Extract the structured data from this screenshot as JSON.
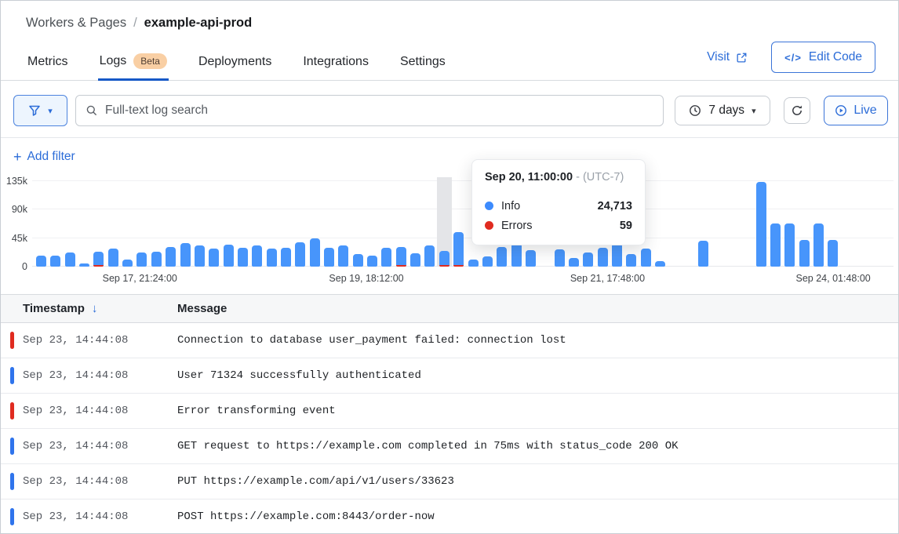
{
  "colors": {
    "accent": "#2b6cd8",
    "tab_underline": "#1659c7",
    "bar_blue": "#4795fb",
    "red": "#e02b20",
    "dot_blue": "#3d8bfd",
    "indicator_blue": "#2f74ec",
    "hover_band": "#e4e5e8",
    "beta_bg": "#f9cfa4",
    "beta_text": "#4f3e33"
  },
  "icons": {
    "code": "</>",
    "plus": "+",
    "caret": "▾",
    "sort_desc": "↓"
  },
  "header": {
    "breadcrumb_root": "Workers & Pages",
    "breadcrumb_sep": "/",
    "breadcrumb_current": "example-api-prod"
  },
  "tabs": {
    "items": [
      {
        "label": "Metrics",
        "active": false
      },
      {
        "label": "Logs",
        "badge": "Beta",
        "active": true
      },
      {
        "label": "Deployments",
        "active": false
      },
      {
        "label": "Integrations",
        "active": false
      },
      {
        "label": "Settings",
        "active": false
      }
    ],
    "visit_label": "Visit",
    "edit_code_label": "Edit Code"
  },
  "filter_bar": {
    "search_placeholder": "Full-text log search",
    "range_label": "7 days",
    "live_label": "Live",
    "add_filter_label": "Add filter"
  },
  "tooltip": {
    "title": "Sep 20, 11:00:00",
    "timezone": "- (UTC-7)",
    "rows": [
      {
        "label": "Info",
        "value": "24,713",
        "color": "#3d8bfd"
      },
      {
        "label": "Errors",
        "value": "59",
        "color": "#e02b20"
      }
    ]
  },
  "chart_data": {
    "type": "bar",
    "stacked": true,
    "series_names": [
      "Info",
      "Errors"
    ],
    "ylim": [
      0,
      135000
    ],
    "yticks": [
      {
        "label": "135k",
        "value": 135000
      },
      {
        "label": "90k",
        "value": 90000
      },
      {
        "label": "45k",
        "value": 45000
      },
      {
        "label": "0",
        "value": 0
      }
    ],
    "xticks": [
      {
        "label": "Sep 17, 21:24:00",
        "pos": 0.125
      },
      {
        "label": "Sep 19, 18:12:00",
        "pos": 0.388
      },
      {
        "label": "Sep 21, 17:48:00",
        "pos": 0.668
      },
      {
        "label": "Sep 24, 01:48:00",
        "pos": 0.93
      }
    ],
    "hover_index": 28,
    "hover": {
      "time": "Sep 20, 11:00:00",
      "info": 24713,
      "errors": 59
    },
    "bars": [
      {
        "info": 17000,
        "errors": 0
      },
      {
        "info": 17000,
        "errors": 0
      },
      {
        "info": 22000,
        "errors": 0
      },
      {
        "info": 5000,
        "errors": 0
      },
      {
        "info": 22000,
        "errors": 1500
      },
      {
        "info": 28000,
        "errors": 0
      },
      {
        "info": 11000,
        "errors": 0
      },
      {
        "info": 22000,
        "errors": 0
      },
      {
        "info": 24000,
        "errors": 0
      },
      {
        "info": 31000,
        "errors": 0
      },
      {
        "info": 37000,
        "errors": 0
      },
      {
        "info": 34000,
        "errors": 0
      },
      {
        "info": 28000,
        "errors": 0
      },
      {
        "info": 35000,
        "errors": 0
      },
      {
        "info": 30000,
        "errors": 0
      },
      {
        "info": 34000,
        "errors": 0
      },
      {
        "info": 28000,
        "errors": 0
      },
      {
        "info": 30000,
        "errors": 0
      },
      {
        "info": 38000,
        "errors": 0
      },
      {
        "info": 45000,
        "errors": 0
      },
      {
        "info": 30000,
        "errors": 0
      },
      {
        "info": 34000,
        "errors": 0
      },
      {
        "info": 20000,
        "errors": 0
      },
      {
        "info": 17000,
        "errors": 0
      },
      {
        "info": 30000,
        "errors": 0
      },
      {
        "info": 30000,
        "errors": 1200
      },
      {
        "info": 21000,
        "errors": 0
      },
      {
        "info": 34000,
        "errors": 0
      },
      {
        "info": 24713,
        "errors": 59
      },
      {
        "info": 51000,
        "errors": 3000
      },
      {
        "info": 11000,
        "errors": 0
      },
      {
        "info": 16000,
        "errors": 0
      },
      {
        "info": 31000,
        "errors": 0
      },
      {
        "info": 37000,
        "errors": 0
      },
      {
        "info": 26000,
        "errors": 0
      },
      {
        "info": 0,
        "errors": 0
      },
      {
        "info": 27000,
        "errors": 0
      },
      {
        "info": 14000,
        "errors": 0
      },
      {
        "info": 22000,
        "errors": 0
      },
      {
        "info": 30000,
        "errors": 0
      },
      {
        "info": 37000,
        "errors": 0
      },
      {
        "info": 20000,
        "errors": 0
      },
      {
        "info": 28000,
        "errors": 0
      },
      {
        "info": 9000,
        "errors": 0
      },
      {
        "info": 0,
        "errors": 0
      },
      {
        "info": 0,
        "errors": 0
      },
      {
        "info": 41000,
        "errors": 0
      },
      {
        "info": 0,
        "errors": 0
      },
      {
        "info": 0,
        "errors": 0
      },
      {
        "info": 0,
        "errors": 0
      },
      {
        "info": 134000,
        "errors": 0
      },
      {
        "info": 68000,
        "errors": 0
      },
      {
        "info": 68000,
        "errors": 0
      },
      {
        "info": 42000,
        "errors": 0
      },
      {
        "info": 68000,
        "errors": 0
      },
      {
        "info": 42000,
        "errors": 0
      }
    ]
  },
  "table": {
    "columns": [
      "Timestamp",
      "Message"
    ],
    "rows": [
      {
        "level": "error",
        "timestamp": "Sep 23, 14:44:08",
        "message": "Connection to database user_payment failed: connection lost"
      },
      {
        "level": "info",
        "timestamp": "Sep 23, 14:44:08",
        "message": "User 71324 successfully authenticated"
      },
      {
        "level": "error",
        "timestamp": "Sep 23, 14:44:08",
        "message": "Error transforming event"
      },
      {
        "level": "info",
        "timestamp": "Sep 23, 14:44:08",
        "message": "GET request to https://example.com completed in 75ms with status_code 200 OK"
      },
      {
        "level": "info",
        "timestamp": "Sep 23, 14:44:08",
        "message": "PUT https://example.com/api/v1/users/33623"
      },
      {
        "level": "info",
        "timestamp": "Sep 23, 14:44:08",
        "message": "POST https://example.com:8443/order-now"
      }
    ]
  }
}
